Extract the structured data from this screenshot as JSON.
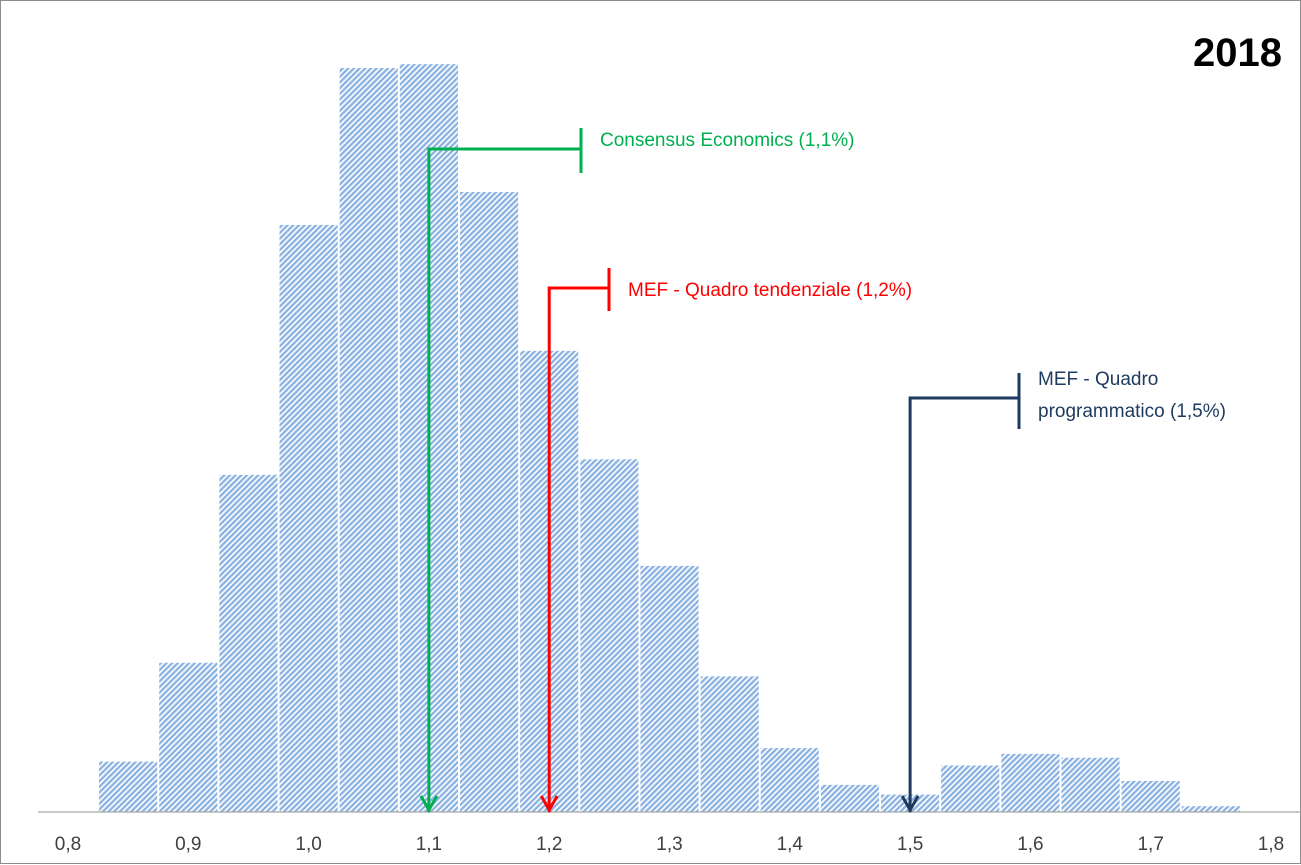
{
  "chart_data": {
    "type": "bar",
    "title": "2018",
    "xlabel": "",
    "ylabel": "",
    "xlim": [
      0.8,
      1.8
    ],
    "x_ticks": [
      "0,8",
      "0,9",
      "1,0",
      "1,1",
      "1,2",
      "1,3",
      "1,4",
      "1,5",
      "1,6",
      "1,7",
      "1,8"
    ],
    "x_tick_values": [
      0.8,
      0.9,
      1.0,
      1.1,
      1.2,
      1.3,
      1.4,
      1.5,
      1.6,
      1.7,
      1.8
    ],
    "bar_width": 0.05,
    "bars": [
      {
        "x": 0.85,
        "value": 5.2
      },
      {
        "x": 0.9,
        "value": 15.4
      },
      {
        "x": 0.95,
        "value": 34.8
      },
      {
        "x": 1.0,
        "value": 60.6
      },
      {
        "x": 1.05,
        "value": 76.8
      },
      {
        "x": 1.1,
        "value": 77.2
      },
      {
        "x": 1.15,
        "value": 64.0
      },
      {
        "x": 1.2,
        "value": 47.6
      },
      {
        "x": 1.25,
        "value": 36.4
      },
      {
        "x": 1.3,
        "value": 25.4
      },
      {
        "x": 1.35,
        "value": 14.0
      },
      {
        "x": 1.4,
        "value": 6.6
      },
      {
        "x": 1.45,
        "value": 2.8
      },
      {
        "x": 1.5,
        "value": 1.8
      },
      {
        "x": 1.55,
        "value": 4.8
      },
      {
        "x": 1.6,
        "value": 6.0
      },
      {
        "x": 1.65,
        "value": 5.6
      },
      {
        "x": 1.7,
        "value": 3.2
      },
      {
        "x": 1.75,
        "value": 0.6
      }
    ],
    "ylim": [
      0,
      80
    ],
    "bar_color": "#8db3e2",
    "annotations": [
      {
        "label": "Consensus Economics (1,1%)",
        "x": 1.1,
        "color": "#00b050",
        "lines": [
          "Consensus Economics (1,1%)"
        ]
      },
      {
        "label": "MEF - Quadro tendenziale (1,2%)",
        "x": 1.2,
        "color": "#ff0000",
        "lines": [
          "MEF - Quadro tendenziale (1,2%)"
        ]
      },
      {
        "label": "MEF - Quadro programmatico (1,5%)",
        "x": 1.5,
        "color": "#1f3a5f",
        "lines": [
          "MEF - Quadro",
          "programmatico (1,5%)"
        ]
      }
    ]
  }
}
